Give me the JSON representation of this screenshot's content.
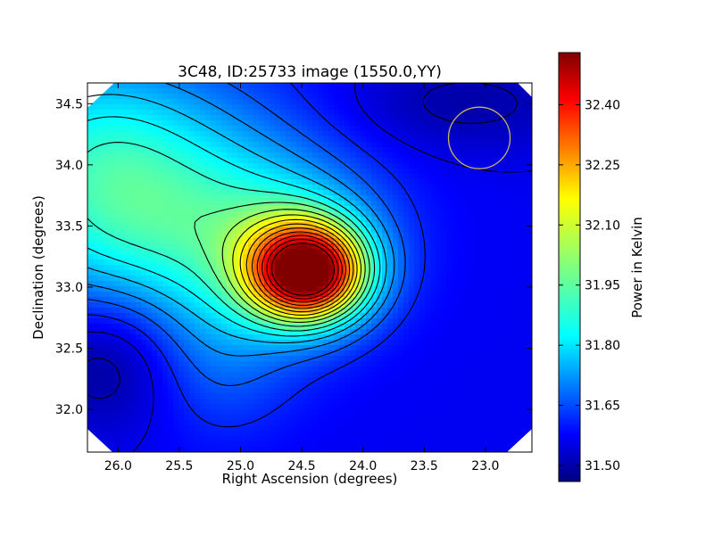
{
  "chart_data": {
    "type": "heatmap",
    "title": "3C48, ID:25733 image (1550.0,YY)",
    "xlabel": "Right Ascension (degrees)",
    "ylabel": "Declination (degrees)",
    "xlim": [
      26.25,
      22.62
    ],
    "ylim": [
      31.65,
      34.67
    ],
    "x_axis_inverted": true,
    "x_ticks": [
      26.0,
      25.5,
      25.0,
      24.5,
      24.0,
      23.5,
      23.0
    ],
    "x_tick_labels": [
      "26.0",
      "25.5",
      "25.0",
      "24.5",
      "24.0",
      "23.5",
      "23.0"
    ],
    "y_ticks": [
      32.0,
      32.5,
      33.0,
      33.5,
      34.0,
      34.5
    ],
    "y_tick_labels": [
      "32.0",
      "32.5",
      "33.0",
      "33.5",
      "34.0",
      "34.5"
    ],
    "colorbar": {
      "label": "Power in Kelvin",
      "range": [
        31.46,
        32.53
      ],
      "ticks": [
        31.5,
        31.65,
        31.8,
        31.95,
        32.1,
        32.25,
        32.4
      ],
      "tick_labels": [
        "31.50",
        "31.65",
        "31.80",
        "31.95",
        "32.10",
        "32.25",
        "32.40"
      ],
      "colormap": "jet"
    },
    "peak": {
      "ra": 24.45,
      "dec": 33.12,
      "value": 32.5
    },
    "minimum_regions": [
      {
        "ra": 26.0,
        "dec": 32.45,
        "value": 31.48
      },
      {
        "ra": 23.2,
        "dec": 34.5,
        "value": 31.5
      }
    ],
    "contour_count": 18,
    "contour_color": "#000000",
    "marker_circle": {
      "ra": 23.05,
      "dec": 34.22,
      "radius_deg": 0.37,
      "color": "#c8b45a"
    },
    "grid": false,
    "legend": "colorbar-right"
  }
}
